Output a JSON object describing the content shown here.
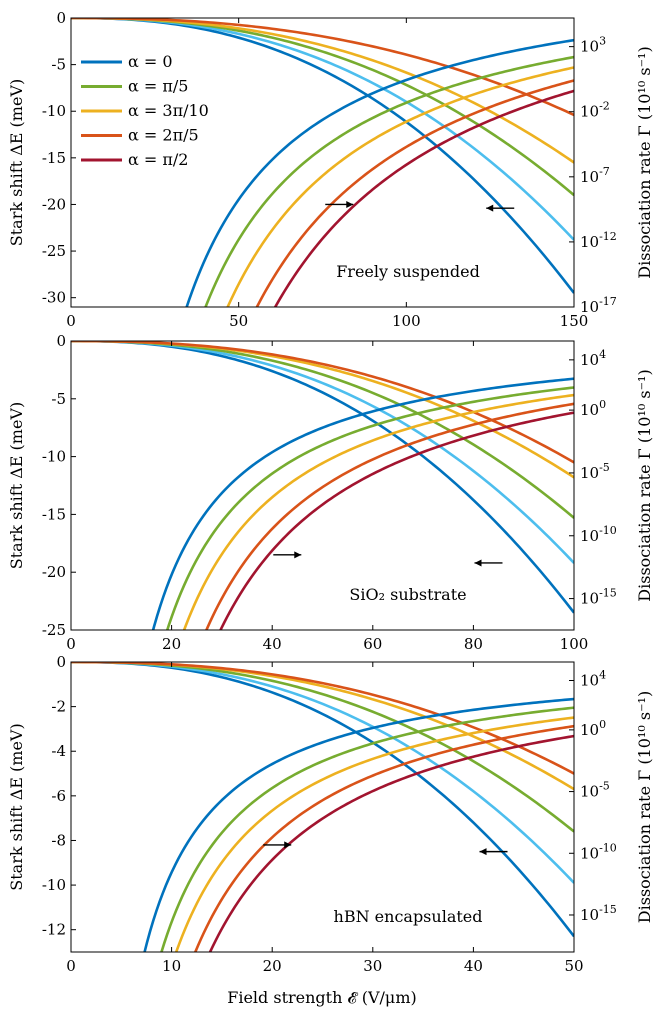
{
  "figure": {
    "xlabel": "Field strength 𝓔 (V/μm)",
    "legend_placement": "upper-left of top panel",
    "legend": [
      {
        "label": "α = 0",
        "color": "#0072BD"
      },
      {
        "label": "α = π/5",
        "color": "#77AC30"
      },
      {
        "label": "α = 3π/10",
        "color": "#EDB120"
      },
      {
        "label": "α = 2π/5",
        "color": "#D95319"
      },
      {
        "label": "α = π/2",
        "color": "#A2142F"
      }
    ],
    "extra_curve_color": "#4DBEEE"
  },
  "chart_data": [
    {
      "type": "line",
      "annotation": "Freely suspended",
      "ylabel_left": "Stark shift ΔE (meV)",
      "ylabel_right": "Dissociation rate Γ (10¹⁰ s⁻¹)",
      "xlim": [
        0,
        150
      ],
      "ylim_left": [
        -31,
        0
      ],
      "ylim_right_log10": [
        -17,
        5.2
      ],
      "log_right_axis": true,
      "x_ticks": [
        "0",
        "50",
        "100",
        "150"
      ],
      "y_left_ticks": [
        "0",
        "-5",
        "-10",
        "-15",
        "-20",
        "-25",
        "-30"
      ],
      "y_right_ticks": [
        {
          "base": "10",
          "exp": "3"
        },
        {
          "base": "10",
          "exp": "-2"
        },
        {
          "base": "10",
          "exp": "-7"
        },
        {
          "base": "10",
          "exp": "-12"
        },
        {
          "base": "10",
          "exp": "-17"
        }
      ],
      "stark_shift_series": [
        {
          "color": "#0072BD",
          "values_at_xmax": -29.5
        },
        {
          "color": "#4DBEEE",
          "values_at_xmax": -23.8
        },
        {
          "color": "#77AC30",
          "values_at_xmax": -19.0
        },
        {
          "color": "#EDB120",
          "values_at_xmax": -15.5
        },
        {
          "color": "#D95319",
          "values_at_xmax": -10.4
        }
      ],
      "stark_shift_exponent": 2.4,
      "dissociation_rate_series": [
        {
          "color": "#0072BD",
          "x_start": 31,
          "log10_at_xmax": 3.5,
          "log10_at_x100": 0.5
        },
        {
          "color": "#77AC30",
          "x_start": 36,
          "log10_at_xmax": 2.2,
          "log10_at_x100": -1.5
        },
        {
          "color": "#EDB120",
          "x_start": 42,
          "log10_at_xmax": 1.4,
          "log10_at_x100": -3.0
        },
        {
          "color": "#D95319",
          "x_start": 50,
          "log10_at_xmax": 0.4,
          "log10_at_x100": -4.3
        },
        {
          "color": "#A2142F",
          "x_start": 55,
          "log10_at_xmax": -0.4,
          "log10_at_x100": -5.2
        }
      ],
      "arrows": [
        {
          "direction": "right",
          "x": 80,
          "y": -20
        },
        {
          "direction": "left",
          "x": 128,
          "y": -20.4
        }
      ]
    },
    {
      "type": "line",
      "annotation": "SiO₂ substrate",
      "ylabel_left": "Stark shift ΔE (meV)",
      "ylabel_right": "Dissociation rate Γ (10¹⁰ s⁻¹)",
      "xlim": [
        0,
        100
      ],
      "ylim_left": [
        -25,
        0
      ],
      "ylim_right_log10": [
        -17.5,
        5.5
      ],
      "log_right_axis": true,
      "x_ticks": [
        "0",
        "20",
        "40",
        "60",
        "80",
        "100"
      ],
      "y_left_ticks": [
        "0",
        "-5",
        "-10",
        "-15",
        "-20",
        "-25"
      ],
      "y_right_ticks": [
        {
          "base": "10",
          "exp": "4"
        },
        {
          "base": "10",
          "exp": "0"
        },
        {
          "base": "10",
          "exp": "-5"
        },
        {
          "base": "10",
          "exp": "-10"
        },
        {
          "base": "10",
          "exp": "-15"
        }
      ],
      "stark_shift_series": [
        {
          "color": "#0072BD",
          "values_at_xmax": -23.5
        },
        {
          "color": "#4DBEEE",
          "values_at_xmax": -19.2
        },
        {
          "color": "#77AC30",
          "values_at_xmax": -15.3
        },
        {
          "color": "#EDB120",
          "values_at_xmax": -11.8
        },
        {
          "color": "#D95319",
          "values_at_xmax": -10.5
        }
      ],
      "stark_shift_exponent": 2.4,
      "dissociation_rate_series": [
        {
          "color": "#0072BD",
          "x_start": 14.5,
          "log10_at_xmax": 2.5,
          "log10_at_x100": 2.5
        },
        {
          "color": "#77AC30",
          "x_start": 17,
          "log10_at_xmax": 1.8,
          "log10_at_x100": 1.8
        },
        {
          "color": "#EDB120",
          "x_start": 20,
          "log10_at_xmax": 1.2,
          "log10_at_x100": 1.2
        },
        {
          "color": "#D95319",
          "x_start": 24,
          "log10_at_xmax": 0.5,
          "log10_at_x100": 0.5
        },
        {
          "color": "#A2142F",
          "x_start": 26.5,
          "log10_at_xmax": -0.2,
          "log10_at_x100": -0.2
        }
      ],
      "arrows": [
        {
          "direction": "right",
          "x": 43,
          "y": -18.5
        },
        {
          "direction": "left",
          "x": 83,
          "y": -19.2
        }
      ]
    },
    {
      "type": "line",
      "annotation": "hBN encapsulated",
      "ylabel_left": "Stark shift ΔE (meV)",
      "ylabel_right": "Dissociation rate Γ (10¹⁰ s⁻¹)",
      "xlim": [
        0,
        50
      ],
      "ylim_left": [
        -13,
        0
      ],
      "ylim_right_log10": [
        -18,
        5.5
      ],
      "log_right_axis": true,
      "x_ticks": [
        "0",
        "10",
        "20",
        "30",
        "40",
        "50"
      ],
      "y_left_ticks": [
        "0",
        "-2",
        "-4",
        "-6",
        "-8",
        "-10",
        "-12"
      ],
      "y_right_ticks": [
        {
          "base": "10",
          "exp": "4"
        },
        {
          "base": "10",
          "exp": "0"
        },
        {
          "base": "10",
          "exp": "-5"
        },
        {
          "base": "10",
          "exp": "-10"
        },
        {
          "base": "10",
          "exp": "-15"
        }
      ],
      "stark_shift_series": [
        {
          "color": "#0072BD",
          "values_at_xmax": -12.3
        },
        {
          "color": "#4DBEEE",
          "values_at_xmax": -9.9
        },
        {
          "color": "#77AC30",
          "values_at_xmax": -7.6
        },
        {
          "color": "#EDB120",
          "values_at_xmax": -5.7
        },
        {
          "color": "#D95319",
          "values_at_xmax": -5.0
        }
      ],
      "stark_shift_exponent": 2.4,
      "dissociation_rate_series": [
        {
          "color": "#0072BD",
          "x_start": 6.5,
          "log10_at_xmax": 2.5,
          "log10_at_x100": 2.5
        },
        {
          "color": "#77AC30",
          "x_start": 8,
          "log10_at_xmax": 1.8,
          "log10_at_x100": 1.8
        },
        {
          "color": "#EDB120",
          "x_start": 9.3,
          "log10_at_xmax": 1.0,
          "log10_at_x100": 1.0
        },
        {
          "color": "#D95319",
          "x_start": 11,
          "log10_at_xmax": 0.3,
          "log10_at_x100": 0.3
        },
        {
          "color": "#A2142F",
          "x_start": 12.3,
          "log10_at_xmax": -0.5,
          "log10_at_x100": -0.5
        }
      ],
      "arrows": [
        {
          "direction": "right",
          "x": 20.5,
          "y": -8.2
        },
        {
          "direction": "left",
          "x": 42,
          "y": -8.5
        }
      ]
    }
  ]
}
